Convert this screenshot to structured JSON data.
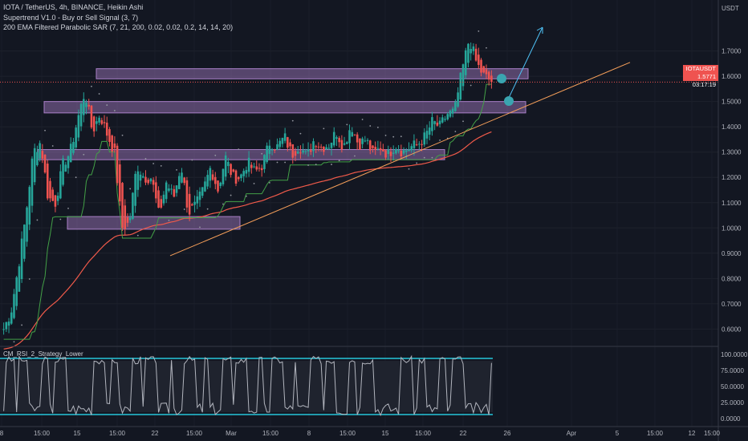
{
  "legend": {
    "line1": "IOTA / TetherUS, 4h, BINANCE, Heikin Ashi",
    "line2": "Supertrend V1.0 - Buy or Sell Signal (3, 7)",
    "line3": "200 EMA Filtered Parabolic SAR (7, 21, 200, 0.02, 0.02, 0.2, 14, 14, 20)"
  },
  "lower_pane_title": "CM_RSI_2_Strategy_Lower",
  "price_tag": {
    "symbol": "IOTAUSDT",
    "price": "1.5771",
    "countdown": "03:17:19"
  },
  "colors": {
    "up": "#26a69a",
    "down": "#ef5350",
    "background": "#131722",
    "zone": "#a97fc7",
    "trendline": "#f7a05a",
    "ema": "#f05a4a",
    "supertrend": "#43a047",
    "rsi_bands": "#26c6da",
    "rsi_line": "#b2b5be",
    "arrow": "#4fc3f7",
    "marker": "#3aa5b0"
  },
  "chart_data": [
    {
      "type": "candlestick",
      "title": "IOTA / TetherUS, 4h, BINANCE, Heikin Ashi",
      "y_axis_unit": "USDT",
      "ylim": [
        0.56,
        1.87
      ],
      "y_ticks": [
        "1.7000",
        "1.6000",
        "1.5000",
        "1.4000",
        "1.3000",
        "1.2000",
        "1.1000",
        "1.0000",
        "0.9000",
        "0.8000",
        "0.7000",
        "0.6000"
      ],
      "x_ticks": [
        "8",
        "15:00",
        "15",
        "15:00",
        "22",
        "15:00",
        "Mar",
        "15:00",
        "8",
        "15:00",
        "15",
        "15:00",
        "22",
        "26",
        "Apr",
        "5",
        "15:00",
        "12",
        "15:00"
      ],
      "current_price": 1.5771,
      "sr_zones": [
        [
          1.59,
          1.63
        ],
        [
          1.455,
          1.5
        ],
        [
          1.27,
          1.31
        ],
        [
          0.995,
          1.045
        ]
      ],
      "trendline": [
        [
          0.89,
          "start"
        ],
        [
          1.655,
          "end"
        ]
      ],
      "price_waypoints": [
        0.6,
        0.67,
        0.85,
        1.05,
        1.3,
        1.34,
        1.12,
        1.1,
        1.25,
        1.3,
        1.43,
        1.54,
        1.38,
        1.45,
        1.37,
        1.3,
        1.0,
        1.02,
        1.25,
        1.2,
        1.2,
        1.05,
        1.18,
        1.12,
        1.25,
        1.06,
        1.09,
        1.15,
        1.24,
        1.15,
        1.28,
        1.2,
        1.2,
        1.26,
        1.22,
        1.25,
        1.34,
        1.32,
        1.36,
        1.29,
        1.33,
        1.28,
        1.35,
        1.32,
        1.33,
        1.38,
        1.32,
        1.41,
        1.33,
        1.35,
        1.29,
        1.32,
        1.29,
        1.33,
        1.3,
        1.32,
        1.33,
        1.36,
        1.42,
        1.4,
        1.45,
        1.46,
        1.62,
        1.75,
        1.65,
        1.6,
        1.58
      ]
    },
    {
      "type": "line",
      "title": "CM_RSI_2_Strategy_Lower",
      "ylim": [
        0,
        100
      ],
      "y_ticks": [
        "100.0000",
        "75.0000",
        "50.0000",
        "25.0000",
        "0.0000"
      ],
      "bands": [
        90,
        10
      ]
    }
  ]
}
